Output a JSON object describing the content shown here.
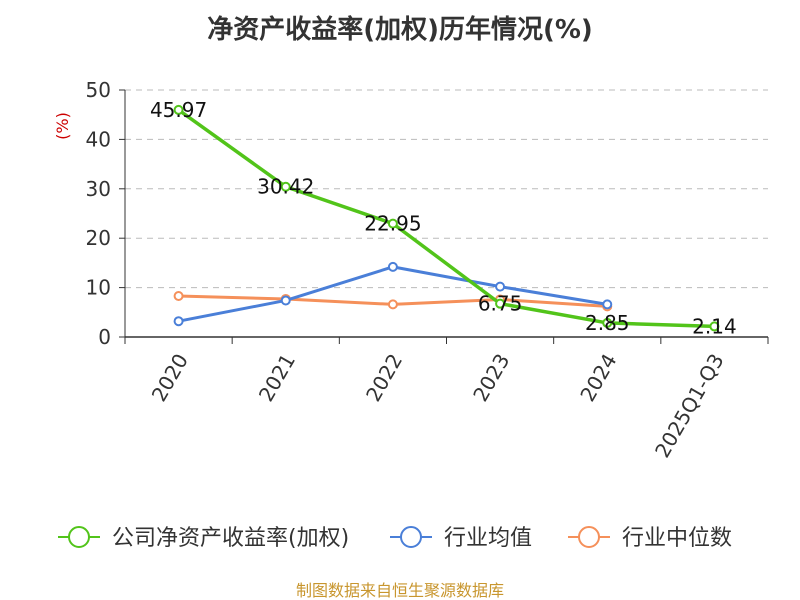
{
  "title": "净资产收益率(加权)历年情况(%)",
  "source": "制图数据来自恒生聚源数据库",
  "chart_data": {
    "type": "line",
    "ylabel": "(%)",
    "ylim": [
      0,
      50
    ],
    "yticks": [
      0,
      10,
      20,
      30,
      40,
      50
    ],
    "categories": [
      "2020",
      "2021",
      "2022",
      "2023",
      "2024",
      "2025Q1-Q3"
    ],
    "grid": true,
    "legend_position": "bottom",
    "series": [
      {
        "name": "公司净资产收益率(加权)",
        "color": "#52c41a",
        "values": [
          45.97,
          30.42,
          22.95,
          6.75,
          2.85,
          2.14
        ],
        "labels": [
          "45.97",
          "30.42",
          "22.95",
          "6.75",
          "2.85",
          "2.14"
        ]
      },
      {
        "name": "行业均值",
        "color": "#4a7fd8",
        "values": [
          3.2,
          7.4,
          14.2,
          10.2,
          6.6,
          null
        ]
      },
      {
        "name": "行业中位数",
        "color": "#f5905a",
        "values": [
          8.3,
          7.7,
          6.6,
          7.6,
          6.2,
          null
        ]
      }
    ]
  }
}
